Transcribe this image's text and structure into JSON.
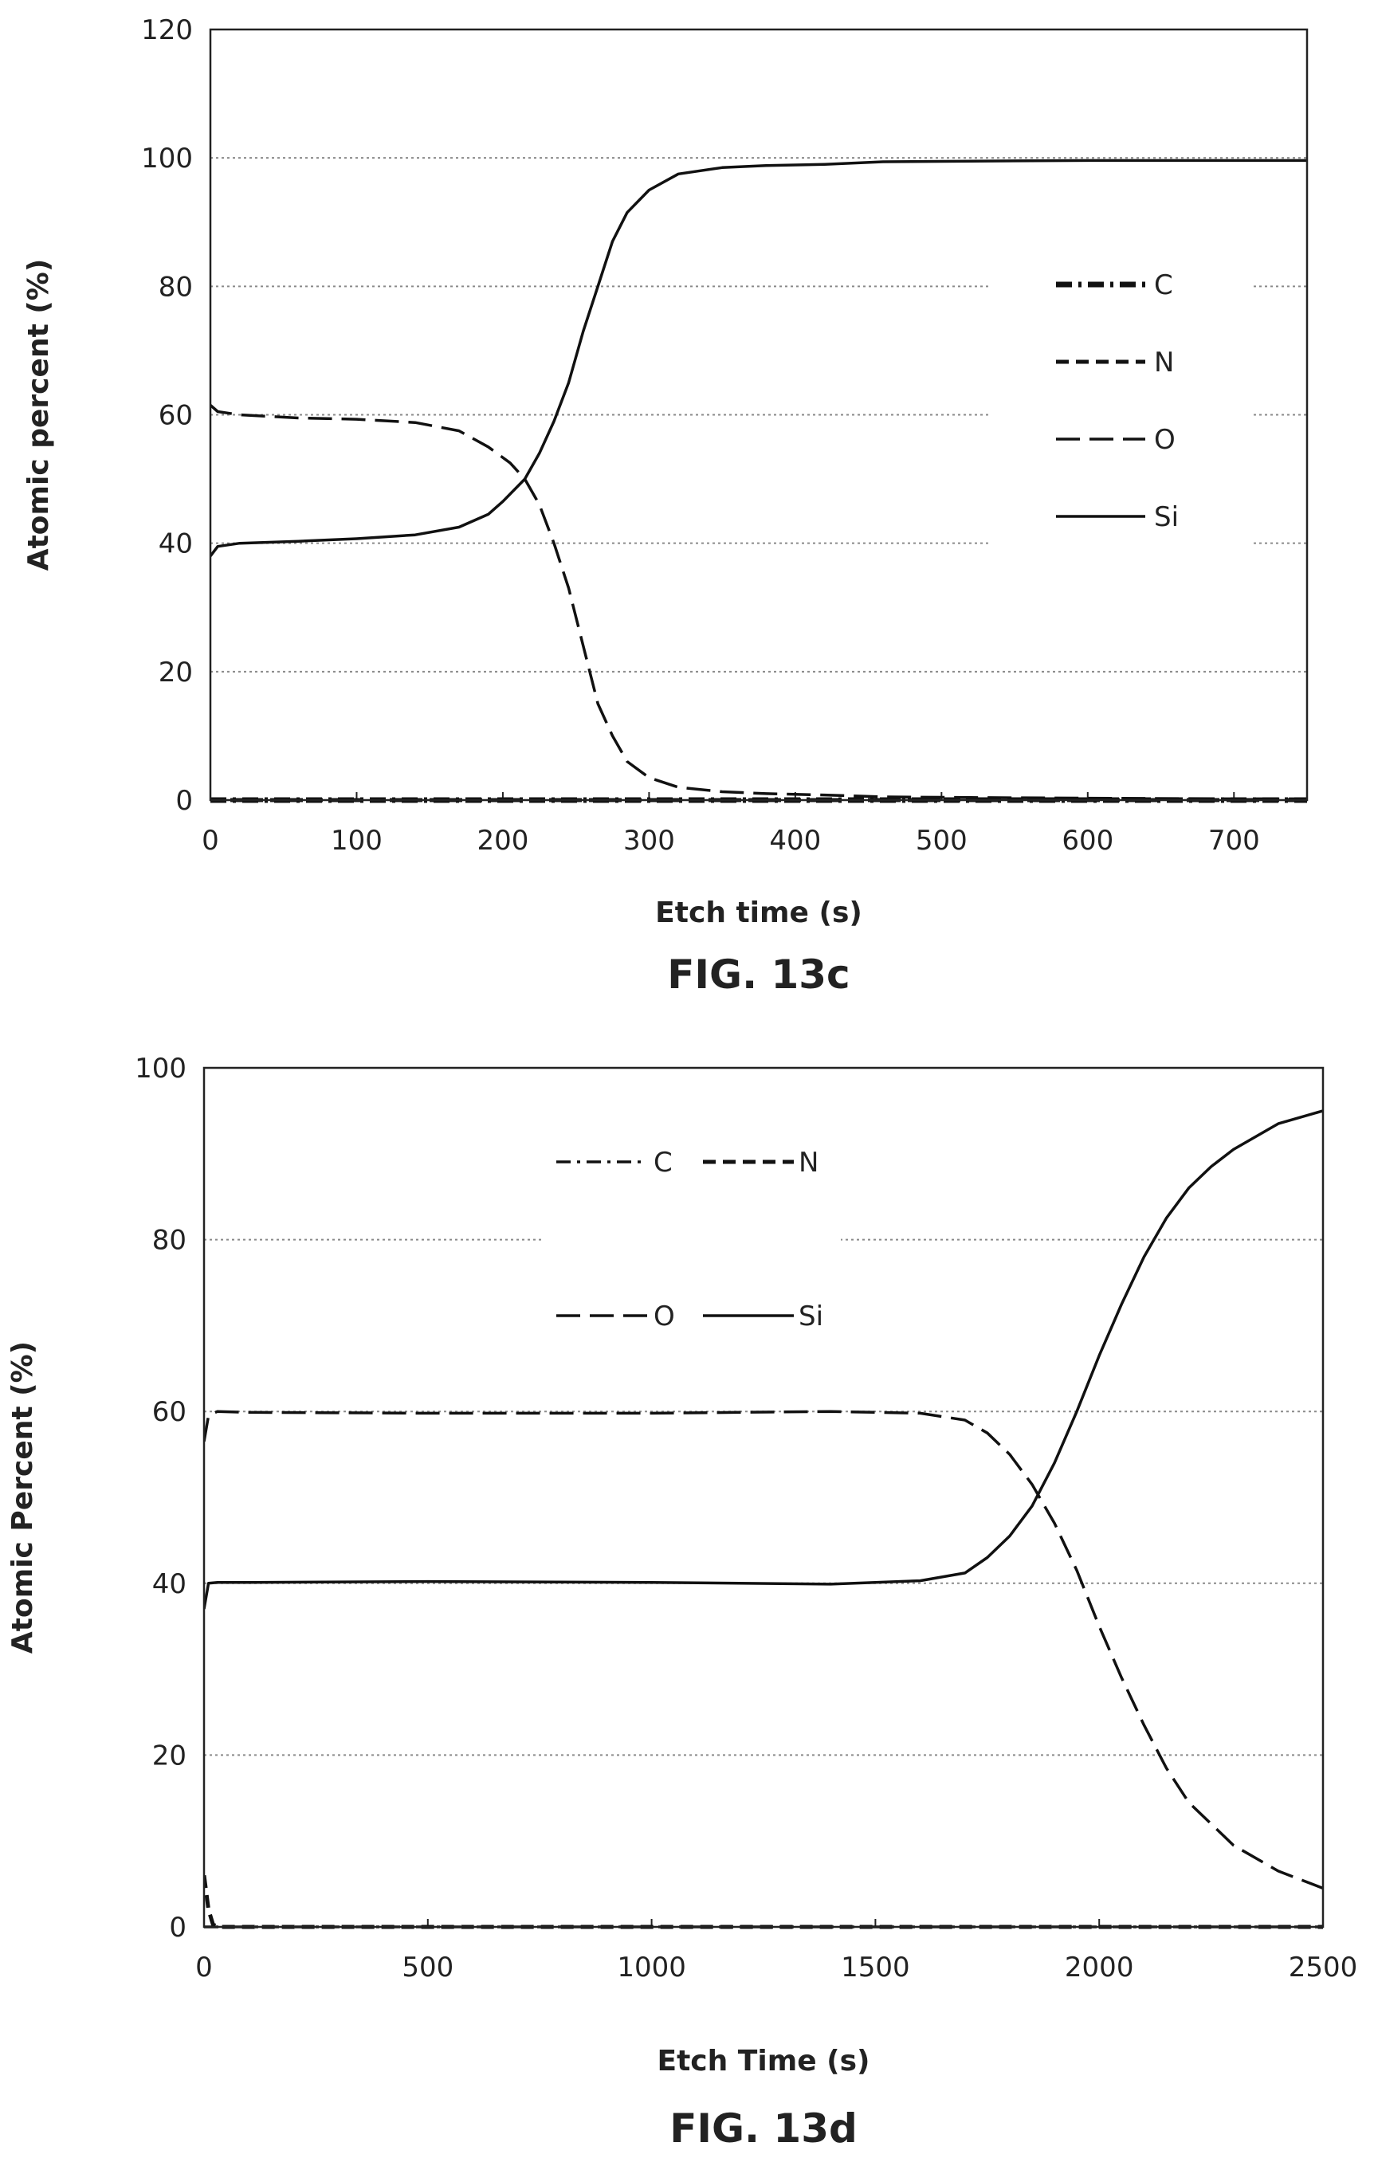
{
  "chart_data": [
    {
      "type": "line",
      "title": "",
      "caption": "FIG. 13c",
      "xlabel": "Etch time (s)",
      "ylabel": "Atomic percent (%)",
      "xlim": [
        0,
        750
      ],
      "ylim": [
        0,
        120
      ],
      "xticks": [
        0,
        100,
        200,
        300,
        400,
        500,
        600,
        700
      ],
      "yticks": [
        0,
        20,
        40,
        60,
        80,
        100,
        120
      ],
      "grid": "horizontal dotted",
      "legend": "right, stacked",
      "series": [
        {
          "name": "C",
          "style": "dash-dot-bold",
          "x": [
            0,
            750
          ],
          "y": [
            0,
            0
          ]
        },
        {
          "name": "N",
          "style": "short-dash",
          "x": [
            0,
            750
          ],
          "y": [
            0,
            0
          ]
        },
        {
          "name": "O",
          "style": "long-dash",
          "x": [
            0,
            5,
            20,
            60,
            100,
            140,
            170,
            190,
            205,
            215,
            225,
            235,
            245,
            255,
            265,
            275,
            285,
            300,
            320,
            350,
            380,
            420,
            460,
            520,
            600,
            700,
            750
          ],
          "y": [
            61.5,
            60.5,
            60,
            59.5,
            59.3,
            58.8,
            57.5,
            55,
            52.5,
            50,
            46,
            40,
            33,
            24,
            15,
            10,
            6,
            3.5,
            2,
            1.3,
            1,
            0.8,
            0.5,
            0.4,
            0.3,
            0.2,
            0.2
          ]
        },
        {
          "name": "Si",
          "style": "solid",
          "x": [
            0,
            5,
            20,
            60,
            100,
            140,
            170,
            190,
            200,
            215,
            225,
            235,
            245,
            255,
            265,
            275,
            285,
            300,
            320,
            350,
            380,
            420,
            460,
            520,
            600,
            700,
            750
          ],
          "y": [
            38,
            39.5,
            40,
            40.3,
            40.7,
            41.3,
            42.5,
            44.5,
            46.5,
            50,
            54,
            59,
            65,
            73,
            80,
            87,
            91.5,
            95,
            97.5,
            98.5,
            98.8,
            99,
            99.4,
            99.5,
            99.6,
            99.6,
            99.6
          ]
        }
      ]
    },
    {
      "type": "line",
      "title": "",
      "caption": "FIG. 13d",
      "xlabel": "Etch Time (s)",
      "ylabel": "Atomic Percent (%)",
      "xlim": [
        0,
        2500
      ],
      "ylim": [
        0,
        100
      ],
      "xticks": [
        0,
        500,
        1000,
        1500,
        2000,
        2500
      ],
      "yticks": [
        0,
        20,
        40,
        60,
        80,
        100
      ],
      "grid": "horizontal dotted",
      "legend": "top-center, 2x2",
      "series": [
        {
          "name": "C",
          "style": "dash-dot",
          "x": [
            0,
            2500
          ],
          "y": [
            0,
            0
          ]
        },
        {
          "name": "N",
          "style": "short-dash",
          "x": [
            0,
            10,
            20,
            30,
            2500
          ],
          "y": [
            6,
            2,
            0.3,
            0,
            0
          ]
        },
        {
          "name": "O",
          "style": "long-dash",
          "x": [
            0,
            10,
            30,
            100,
            500,
            1000,
            1400,
            1600,
            1700,
            1750,
            1800,
            1850,
            1900,
            1950,
            2000,
            2050,
            2100,
            2150,
            2200,
            2300,
            2400,
            2500
          ],
          "y": [
            56.5,
            59.5,
            60,
            59.9,
            59.8,
            59.8,
            60,
            59.8,
            59,
            57.5,
            55,
            51.5,
            47,
            41.5,
            35,
            29,
            23.5,
            18.5,
            14.5,
            9.5,
            6.5,
            4.5
          ]
        },
        {
          "name": "Si",
          "style": "solid",
          "x": [
            0,
            10,
            30,
            100,
            500,
            1000,
            1400,
            1600,
            1700,
            1750,
            1800,
            1850,
            1900,
            1950,
            2000,
            2050,
            2100,
            2150,
            2200,
            2250,
            2300,
            2400,
            2500
          ],
          "y": [
            37,
            40,
            40.1,
            40.1,
            40.2,
            40.1,
            39.9,
            40.3,
            41.2,
            43,
            45.5,
            49,
            54,
            60,
            66.5,
            72.5,
            78,
            82.5,
            86,
            88.5,
            90.5,
            93.5,
            95
          ]
        }
      ]
    }
  ]
}
